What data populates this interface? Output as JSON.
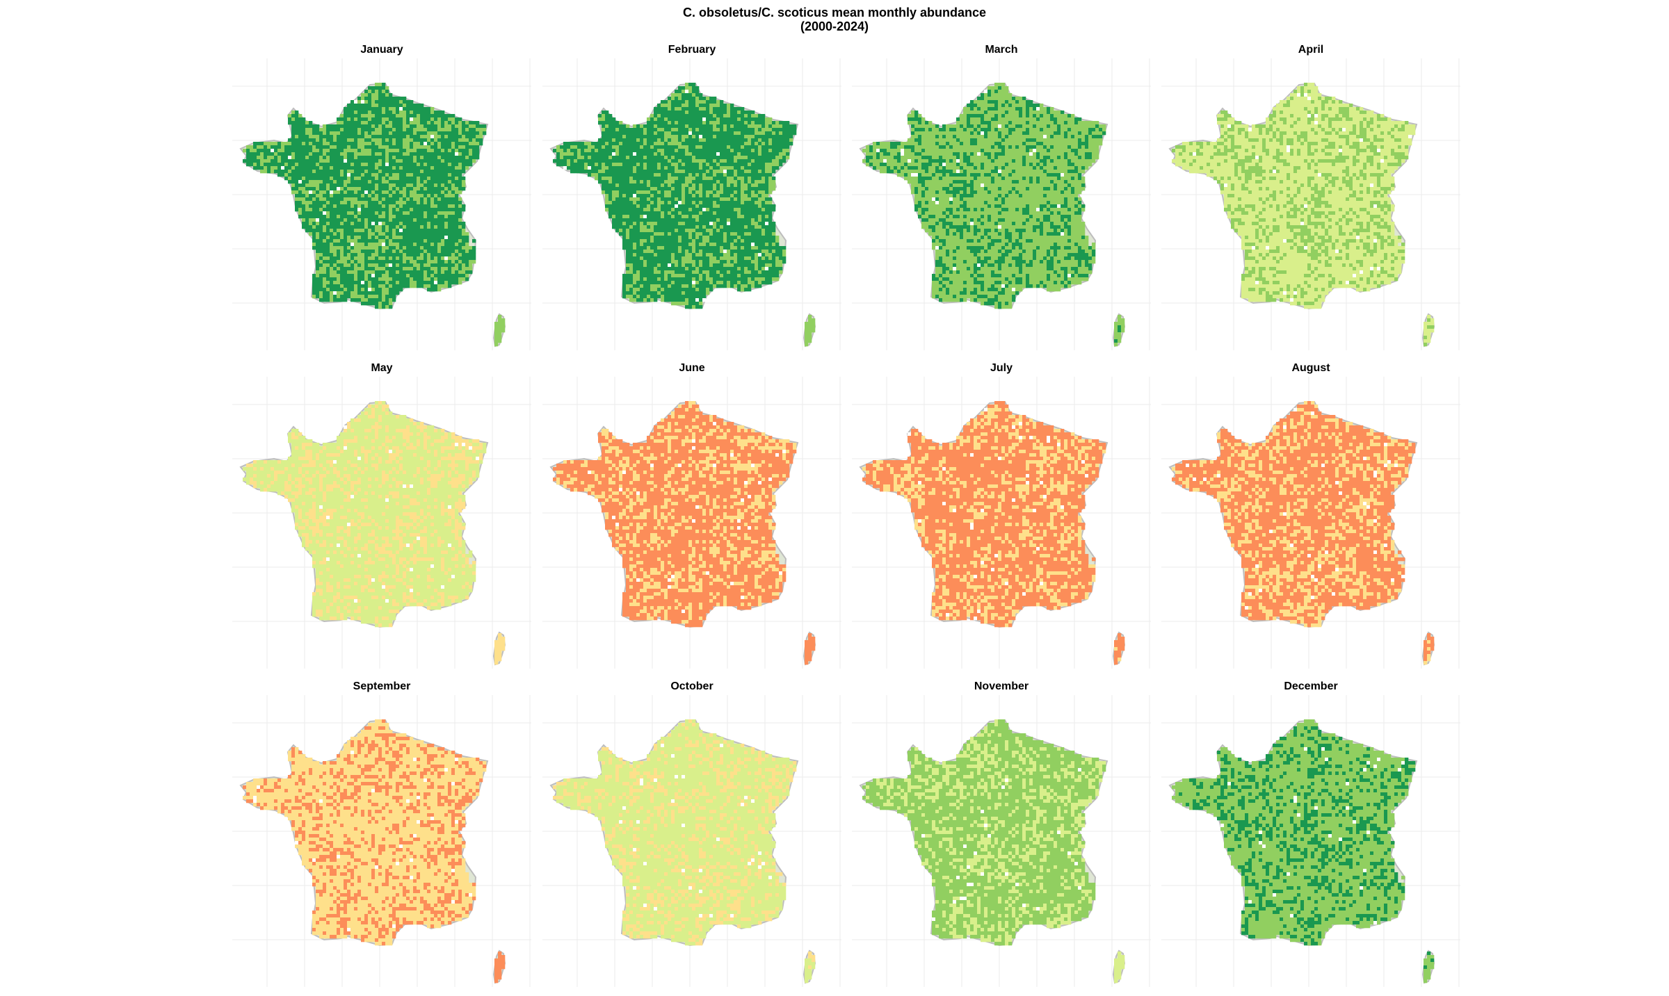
{
  "figure": {
    "title_line1": "C. obsoletus/C. scoticus mean monthly abundance",
    "title_line2": "(2000-2024)"
  },
  "palette": {
    "dark_green": "#1a9850",
    "mid_green": "#91cf60",
    "light_green": "#d9ef8b",
    "yellow": "#fee08b",
    "orange": "#fc8d59",
    "alps_grey": "#dfe6d4",
    "outline": "#bdbdbd",
    "grid": "#ebebeb"
  },
  "panels": [
    {
      "month": "January",
      "dominant": "dark_green",
      "secondary": "mid_green",
      "corsica": "mid_green"
    },
    {
      "month": "February",
      "dominant": "dark_green",
      "secondary": "mid_green",
      "corsica": "mid_green"
    },
    {
      "month": "March",
      "dominant": "mid_green",
      "secondary": "dark_green",
      "corsica": "mid_green"
    },
    {
      "month": "April",
      "dominant": "light_green",
      "secondary": "mid_green",
      "corsica": "light_green"
    },
    {
      "month": "May",
      "dominant": "light_green",
      "secondary": "yellow",
      "corsica": "yellow"
    },
    {
      "month": "June",
      "dominant": "orange",
      "secondary": "yellow",
      "corsica": "orange"
    },
    {
      "month": "July",
      "dominant": "orange",
      "secondary": "yellow",
      "corsica": "orange"
    },
    {
      "month": "August",
      "dominant": "orange",
      "secondary": "yellow",
      "corsica": "orange"
    },
    {
      "month": "September",
      "dominant": "yellow",
      "secondary": "orange",
      "corsica": "orange"
    },
    {
      "month": "October",
      "dominant": "light_green",
      "secondary": "yellow",
      "corsica": "light_green"
    },
    {
      "month": "November",
      "dominant": "mid_green",
      "secondary": "light_green",
      "corsica": "light_green"
    },
    {
      "month": "December",
      "dominant": "mid_green",
      "secondary": "dark_green",
      "corsica": "mid_green"
    }
  ]
}
